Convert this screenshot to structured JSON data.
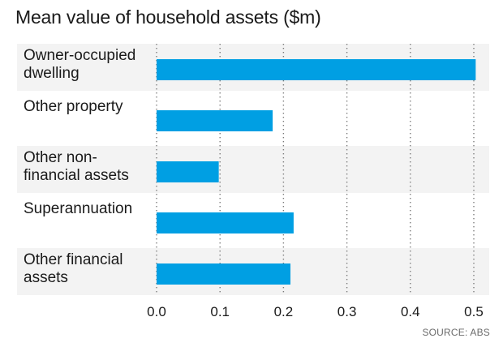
{
  "chart_data": {
    "type": "bar",
    "orientation": "horizontal",
    "title": "Mean value of household assets ($m)",
    "categories": [
      [
        "Owner-occupied",
        "dwelling"
      ],
      [
        "Other property"
      ],
      [
        "Other non-",
        "financial assets"
      ],
      [
        "Superannuation"
      ],
      [
        "Other financial",
        "assets"
      ]
    ],
    "values": [
      0.503,
      0.183,
      0.098,
      0.216,
      0.211
    ],
    "xlim": [
      0,
      0.5
    ],
    "ticks": [
      "0.0",
      "0.1",
      "0.2",
      "0.3",
      "0.4",
      "0.5"
    ],
    "grid": "vertical dotted",
    "bar_color": "#009fe3",
    "row_colors": [
      "#f3f3f3",
      "#ffffff"
    ],
    "source": "SOURCE: ABS"
  }
}
